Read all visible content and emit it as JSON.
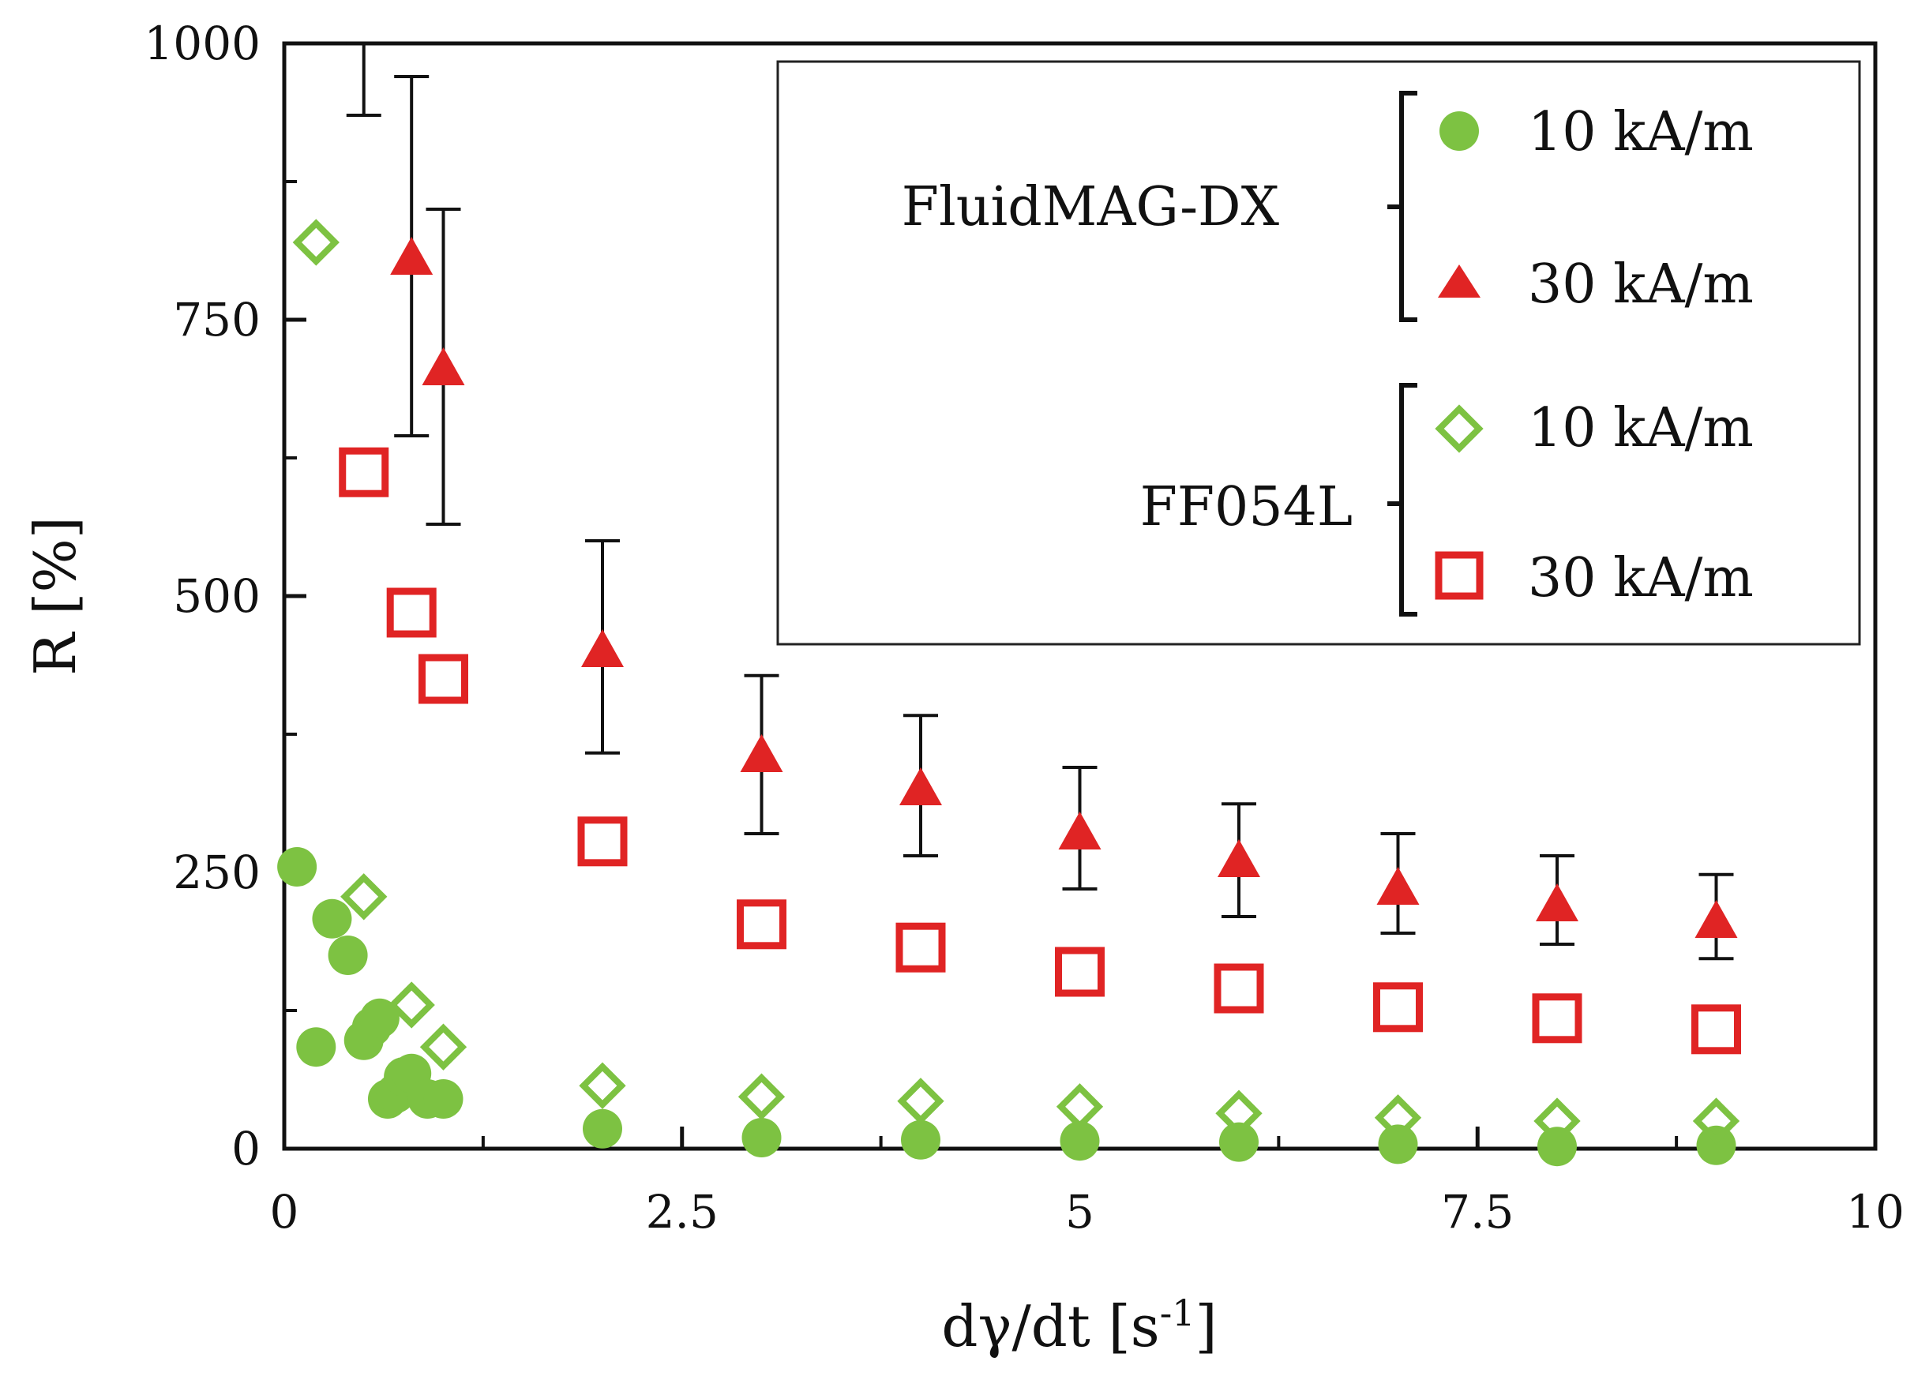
{
  "chart_data": {
    "type": "scatter",
    "xlabel": "dγ/dt [s-1]",
    "xlabel_parts": {
      "main": "dγ/dt [s",
      "sup": "-1",
      "close": "]"
    },
    "ylabel": "R [%]",
    "xlim": [
      0,
      10
    ],
    "ylim": [
      0,
      1000
    ],
    "x_ticks": [
      0,
      2.5,
      5,
      7.5,
      10
    ],
    "x_tick_labels": [
      "0",
      "2.5",
      "5",
      "7.5",
      "10"
    ],
    "y_ticks": [
      0,
      250,
      500,
      750,
      1000
    ],
    "y_tick_labels": [
      "0",
      "250",
      "500",
      "750",
      "1000"
    ],
    "grid": false,
    "legend": {
      "position": "top-right",
      "groups": [
        {
          "name": "FluidMAG-DX",
          "entries": [
            "10 kA/m",
            "30 kA/m"
          ]
        },
        {
          "name": "FF054L",
          "entries": [
            "10 kA/m",
            "30 kA/m"
          ]
        }
      ]
    },
    "series": [
      {
        "name": "FluidMAG-DX 10 kA/m",
        "marker": "filled-circle",
        "color": "#7dc242",
        "x": [
          0.08,
          0.2,
          0.3,
          0.4,
          0.5,
          0.55,
          0.6,
          0.65,
          0.7,
          0.75,
          0.8,
          0.9,
          1.0,
          2.0,
          3.0,
          4.0,
          5.0,
          6.0,
          7.0,
          8.0,
          9.0
        ],
        "y": [
          255,
          92,
          208,
          175,
          98,
          110,
          118,
          45,
          50,
          65,
          68,
          45,
          45,
          18,
          10,
          8,
          7,
          6,
          4,
          2,
          3
        ]
      },
      {
        "name": "FluidMAG-DX 30 kA/m",
        "marker": "filled-triangle",
        "color": "#e02424",
        "x": [
          0.8,
          1.0,
          2.0,
          3.0,
          4.0,
          5.0,
          6.0,
          7.0,
          8.0,
          9.0
        ],
        "y": [
          805,
          705,
          450,
          355,
          325,
          285,
          260,
          235,
          220,
          205
        ],
        "err_low": [
          645,
          565,
          358,
          285,
          265,
          235,
          210,
          195,
          185,
          172
        ],
        "err_high": [
          970,
          850,
          550,
          428,
          392,
          345,
          312,
          285,
          265,
          248
        ]
      },
      {
        "name": "FF054L 10 kA/m",
        "marker": "open-diamond",
        "color": "#7dc242",
        "x": [
          0.2,
          0.5,
          0.8,
          1.0,
          2.0,
          3.0,
          4.0,
          5.0,
          6.0,
          7.0,
          8.0,
          9.0
        ],
        "y": [
          820,
          228,
          130,
          92,
          57,
          47,
          43,
          38,
          32,
          28,
          25,
          25
        ]
      },
      {
        "name": "FF054L 30 kA/m",
        "marker": "open-square",
        "color": "#e02424",
        "x": [
          0.5,
          0.8,
          1.0,
          2.0,
          3.0,
          4.0,
          5.0,
          6.0,
          7.0,
          8.0,
          9.0
        ],
        "y": [
          612,
          485,
          425,
          278,
          203,
          182,
          160,
          145,
          128,
          118,
          108
        ]
      }
    ],
    "extra_error_bars": [
      {
        "x": 0.5,
        "low": 935,
        "high": 1000,
        "note": "partially visible bar clipped at plot top"
      }
    ]
  }
}
